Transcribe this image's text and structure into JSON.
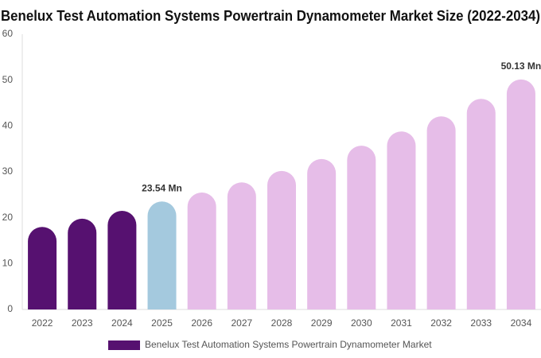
{
  "chart_data": {
    "type": "bar",
    "title": "Benelux Test Automation Systems Powertrain Dynamometer Market Size (2022-2034)",
    "categories": [
      "2022",
      "2023",
      "2024",
      "2025",
      "2026",
      "2027",
      "2028",
      "2029",
      "2030",
      "2031",
      "2032",
      "2033",
      "2034"
    ],
    "series": [
      {
        "name": "Benelux Test Automation Systems Powertrain Dynamometer Market",
        "color": "#561170",
        "colors": [
          "#561170",
          "#561170",
          "#561170",
          "#a4c9de",
          "#e6bde8",
          "#e6bde8",
          "#e6bde8",
          "#e6bde8",
          "#e6bde8",
          "#e6bde8",
          "#e6bde8",
          "#e6bde8",
          "#e6bde8"
        ],
        "values": [
          18.0,
          19.8,
          21.5,
          23.54,
          25.5,
          27.7,
          30.2,
          32.8,
          35.7,
          38.8,
          42.1,
          45.9,
          50.13
        ],
        "value_labels": [
          null,
          null,
          null,
          "23.54 Mn",
          null,
          null,
          null,
          null,
          null,
          null,
          null,
          null,
          "50.13 Mn"
        ]
      }
    ],
    "ylim": [
      0,
      60
    ],
    "yticks": [
      0,
      10,
      20,
      30,
      40,
      50,
      60
    ],
    "grid": false,
    "legend": "bottom"
  }
}
